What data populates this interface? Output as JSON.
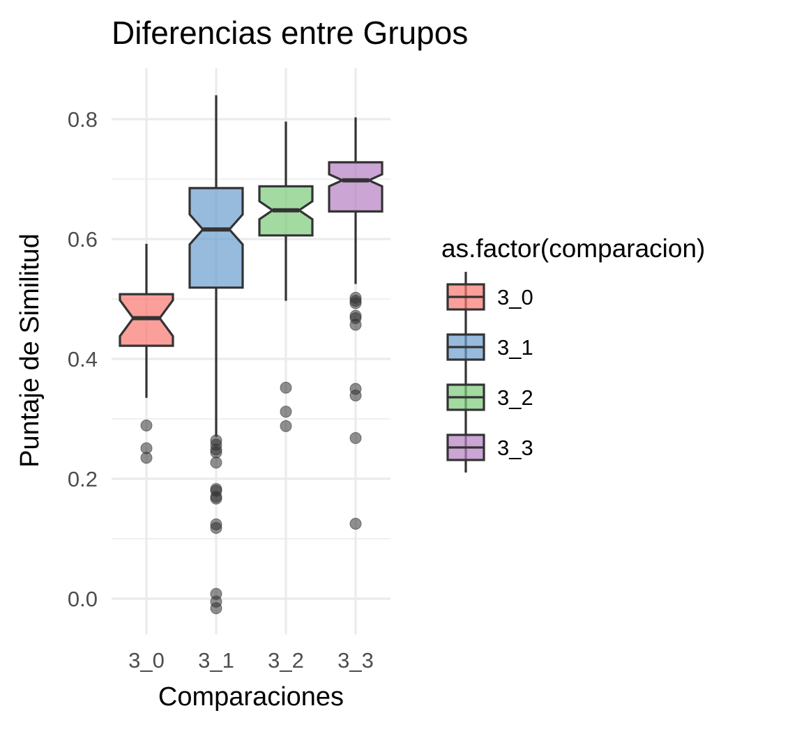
{
  "chart_data": {
    "type": "boxplot",
    "title": "Diferencias entre Grupos",
    "xlabel": "Comparaciones",
    "ylabel": "Puntaje de Similitud",
    "ylim": [
      -0.05,
      0.88
    ],
    "y_ticks": [
      0.0,
      0.2,
      0.4,
      0.6,
      0.8
    ],
    "y_tick_labels": [
      "0.0",
      "0.2",
      "0.4",
      "0.6",
      "0.8"
    ],
    "notched": true,
    "legend": {
      "title": "as.factor(comparacion)",
      "position": "right"
    },
    "groups": [
      {
        "label": "3_0",
        "color": "#F8766D",
        "q1": 0.422,
        "median": 0.468,
        "q3": 0.508,
        "notch_low": 0.438,
        "notch_high": 0.498,
        "whisker_low": 0.335,
        "whisker_high": 0.592,
        "outliers": [
          0.289,
          0.251,
          0.235
        ]
      },
      {
        "label": "3_1",
        "color": "#6A9ECF",
        "q1": 0.519,
        "median": 0.616,
        "q3": 0.685,
        "notch_low": 0.591,
        "notch_high": 0.641,
        "whisker_low": 0.27,
        "whisker_high": 0.84,
        "outliers": [
          0.264,
          0.257,
          0.249,
          0.244,
          0.227,
          0.183,
          0.18,
          0.17,
          0.167,
          0.124,
          0.118,
          0.008,
          -0.005,
          -0.016
        ]
      },
      {
        "label": "3_2",
        "color": "#7BCB7A",
        "q1": 0.606,
        "median": 0.648,
        "q3": 0.688,
        "notch_low": 0.633,
        "notch_high": 0.663,
        "whisker_low": 0.497,
        "whisker_high": 0.796,
        "outliers": [
          0.352,
          0.312,
          0.288
        ]
      },
      {
        "label": "3_3",
        "color": "#B57FC0",
        "q1": 0.646,
        "median": 0.698,
        "q3": 0.728,
        "notch_low": 0.688,
        "notch_high": 0.708,
        "whisker_low": 0.525,
        "whisker_high": 0.803,
        "outliers": [
          0.502,
          0.497,
          0.493,
          0.472,
          0.468,
          0.457,
          0.35,
          0.339,
          0.268,
          0.125
        ]
      }
    ]
  }
}
